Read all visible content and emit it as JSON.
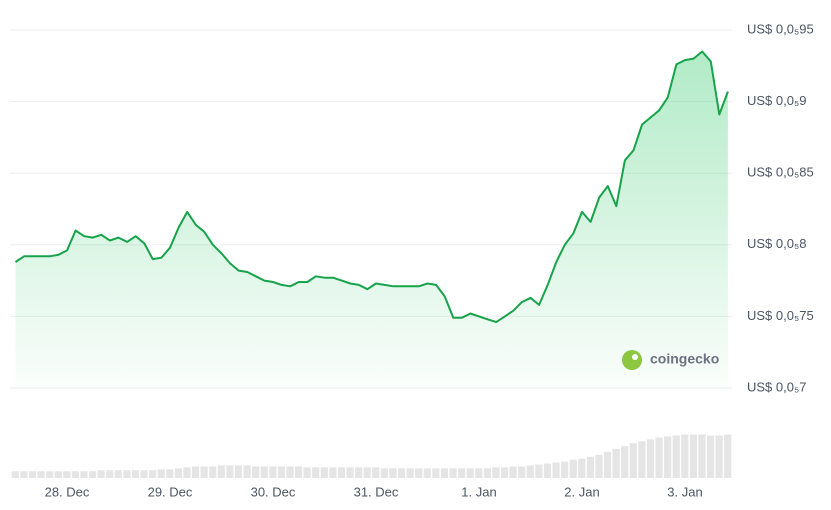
{
  "chart_data": {
    "type": "line",
    "categories": [
      null,
      null,
      null,
      null,
      null,
      null,
      "28. Dec",
      null,
      null,
      null,
      null,
      null,
      null,
      null,
      null,
      null,
      null,
      null,
      "29. Dec",
      null,
      null,
      null,
      null,
      null,
      null,
      null,
      null,
      null,
      null,
      null,
      "30. Dec",
      null,
      null,
      null,
      null,
      null,
      null,
      null,
      null,
      null,
      null,
      null,
      "31. Dec",
      null,
      null,
      null,
      null,
      null,
      null,
      null,
      null,
      null,
      null,
      null,
      "1. Jan",
      null,
      null,
      null,
      null,
      null,
      null,
      null,
      null,
      null,
      null,
      null,
      "2. Jan",
      null,
      null,
      null,
      null,
      null,
      null,
      null,
      null,
      null,
      null,
      null,
      "3. Jan",
      null,
      null,
      null,
      null,
      null
    ],
    "series": [
      {
        "color": "#16a34a",
        "values": [
          7.88e-06,
          7.92e-06,
          7.92e-06,
          7.92e-06,
          7.92e-06,
          7.93e-06,
          7.96e-06,
          8.1e-06,
          8.06e-06,
          8.05e-06,
          8.07e-06,
          8.03e-06,
          8.05e-06,
          8.02e-06,
          8.06e-06,
          8.01e-06,
          7.9e-06,
          7.91e-06,
          7.98e-06,
          8.12e-06,
          8.23e-06,
          8.14e-06,
          8.09e-06,
          8e-06,
          7.94e-06,
          7.87e-06,
          7.82e-06,
          7.81e-06,
          7.78e-06,
          7.75e-06,
          7.74e-06,
          7.72e-06,
          7.71e-06,
          7.74e-06,
          7.74e-06,
          7.78e-06,
          7.77e-06,
          7.77e-06,
          7.75e-06,
          7.73e-06,
          7.72e-06,
          7.69e-06,
          7.73e-06,
          7.72e-06,
          7.71e-06,
          7.71e-06,
          7.71e-06,
          7.71e-06,
          7.73e-06,
          7.72e-06,
          7.64e-06,
          7.49e-06,
          7.49e-06,
          7.52e-06,
          7.5e-06,
          7.48e-06,
          7.46e-06,
          7.5e-06,
          7.54e-06,
          7.6e-06,
          7.63e-06,
          7.58e-06,
          7.72e-06,
          7.88e-06,
          8e-06,
          8.08e-06,
          8.23e-06,
          8.16e-06,
          8.33e-06,
          8.41e-06,
          8.27e-06,
          8.59e-06,
          8.66e-06,
          8.84e-06,
          8.89e-06,
          8.94e-06,
          9.03e-06,
          9.26e-06,
          9.29e-06,
          9.3e-06,
          9.35e-06,
          9.28e-06,
          8.91e-06,
          9.07e-06
        ]
      }
    ],
    "ylim": [
      7e-06,
      9.5e-06
    ],
    "yticks": [
      {
        "value": 9.5e-06,
        "label": "US$ 0,0₅95"
      },
      {
        "value": 9e-06,
        "label": "US$ 0,0₅9"
      },
      {
        "value": 8.5e-06,
        "label": "US$ 0,0₅85"
      },
      {
        "value": 8e-06,
        "label": "US$ 0,0₅8"
      },
      {
        "value": 7.5e-06,
        "label": "US$ 0,0₅75"
      },
      {
        "value": 7e-06,
        "label": "US$ 0,0₅7"
      }
    ],
    "grid": true,
    "volume": {
      "color": "#e5e5e5",
      "ylim": [
        0,
        60
      ],
      "values": [
        7,
        7,
        7,
        7,
        7,
        7,
        7,
        7,
        7,
        7,
        8,
        8,
        8,
        8,
        8,
        8,
        8,
        9,
        9,
        10,
        11,
        12,
        12,
        12,
        13,
        13,
        13,
        13,
        12,
        12,
        12,
        12,
        12,
        12,
        11,
        11,
        11,
        11,
        11,
        11,
        11,
        11,
        11,
        10,
        10,
        10,
        10,
        10,
        10,
        10,
        10,
        10,
        10,
        10,
        10,
        10,
        11,
        11,
        12,
        12,
        13,
        14,
        15,
        16,
        17,
        19,
        20,
        22,
        24,
        27,
        30,
        33,
        36,
        38,
        40,
        42,
        43,
        44,
        45,
        45,
        45,
        44,
        44,
        45
      ]
    },
    "watermark": "coingecko"
  }
}
